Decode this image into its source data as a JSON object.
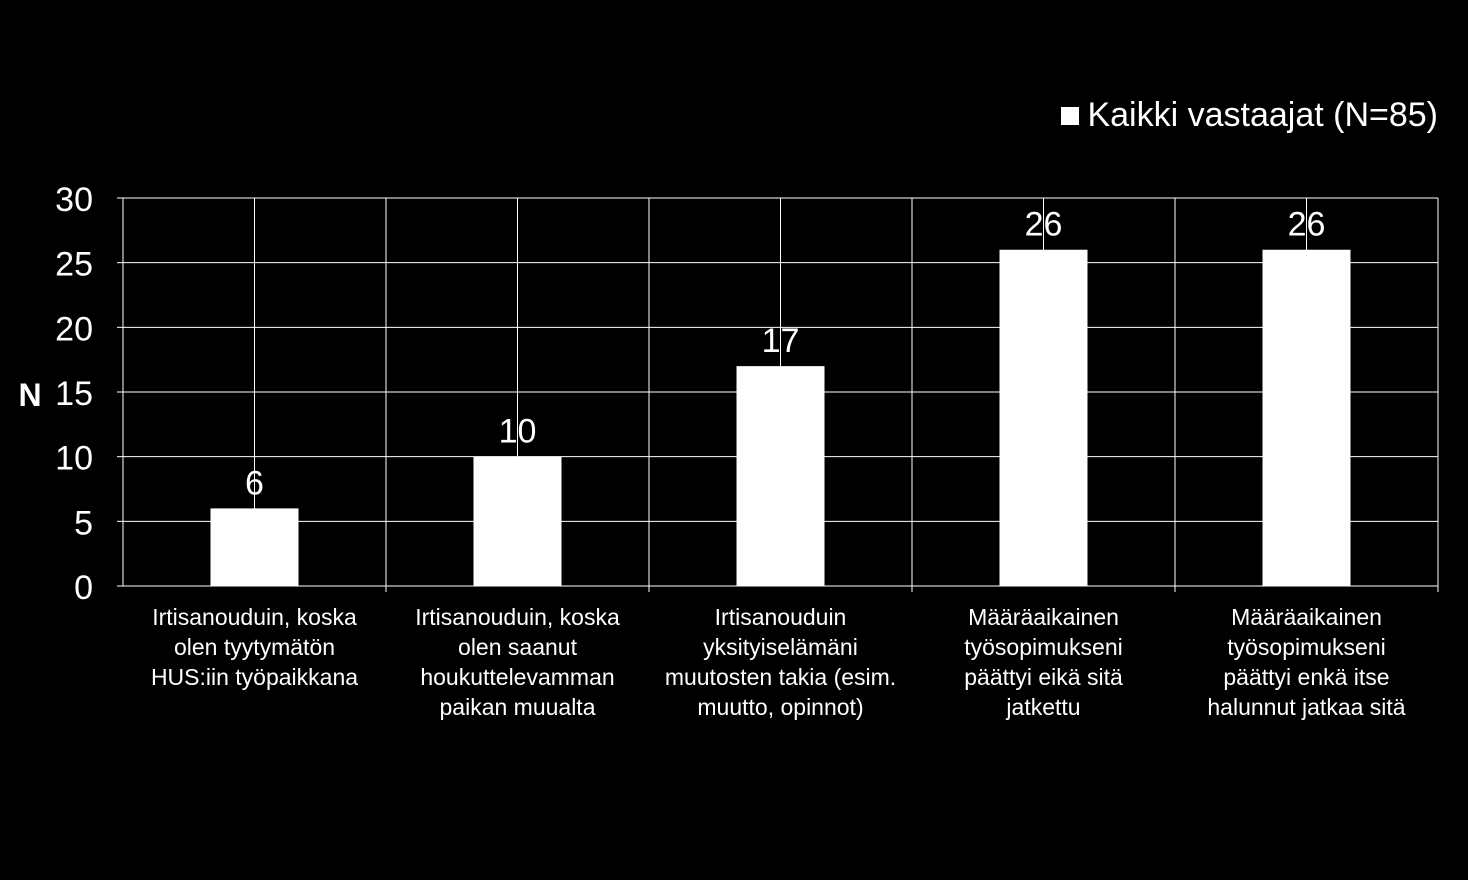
{
  "chart_data": {
    "type": "bar",
    "ylabel": "N",
    "ylim": [
      0,
      30
    ],
    "yticks": [
      0,
      5,
      10,
      15,
      20,
      25,
      30
    ],
    "grid": true,
    "legend_position": "top-right",
    "categories": [
      "Irtisanouduin, koska olen tyytymätön HUS:iin työpaikkana",
      "Irtisanouduin, koska olen saanut houkuttelevamman paikan muualta",
      "Irtisanouduin yksityiselämäni muutosten takia (esim. muutto, opinnot)",
      "Määräaikainen työsopimukseni päättyi eikä sitä jatkettu",
      "Määräaikainen työsopimukseni päättyi enkä itse halunnut jatkaa sitä"
    ],
    "category_lines": [
      [
        "Irtisanouduin, koska",
        "olen tyytymätön",
        "HUS:iin työpaikkana"
      ],
      [
        "Irtisanouduin, koska",
        "olen saanut",
        "houkuttelevamman",
        "paikan muualta"
      ],
      [
        "Irtisanouduin",
        "yksityiselämäni",
        "muutosten takia (esim.",
        "muutto, opinnot)"
      ],
      [
        "Määräaikainen",
        "työsopimukseni",
        "päättyi eikä sitä",
        "jatkettu"
      ],
      [
        "Määräaikainen",
        "työsopimukseni",
        "päättyi enkä itse",
        "halunnut jatkaa sitä"
      ]
    ],
    "series": [
      {
        "name": "Kaikki vastaajat (N=85)",
        "values": [
          6,
          10,
          17,
          26,
          26
        ],
        "color": "#ffffff"
      }
    ]
  }
}
